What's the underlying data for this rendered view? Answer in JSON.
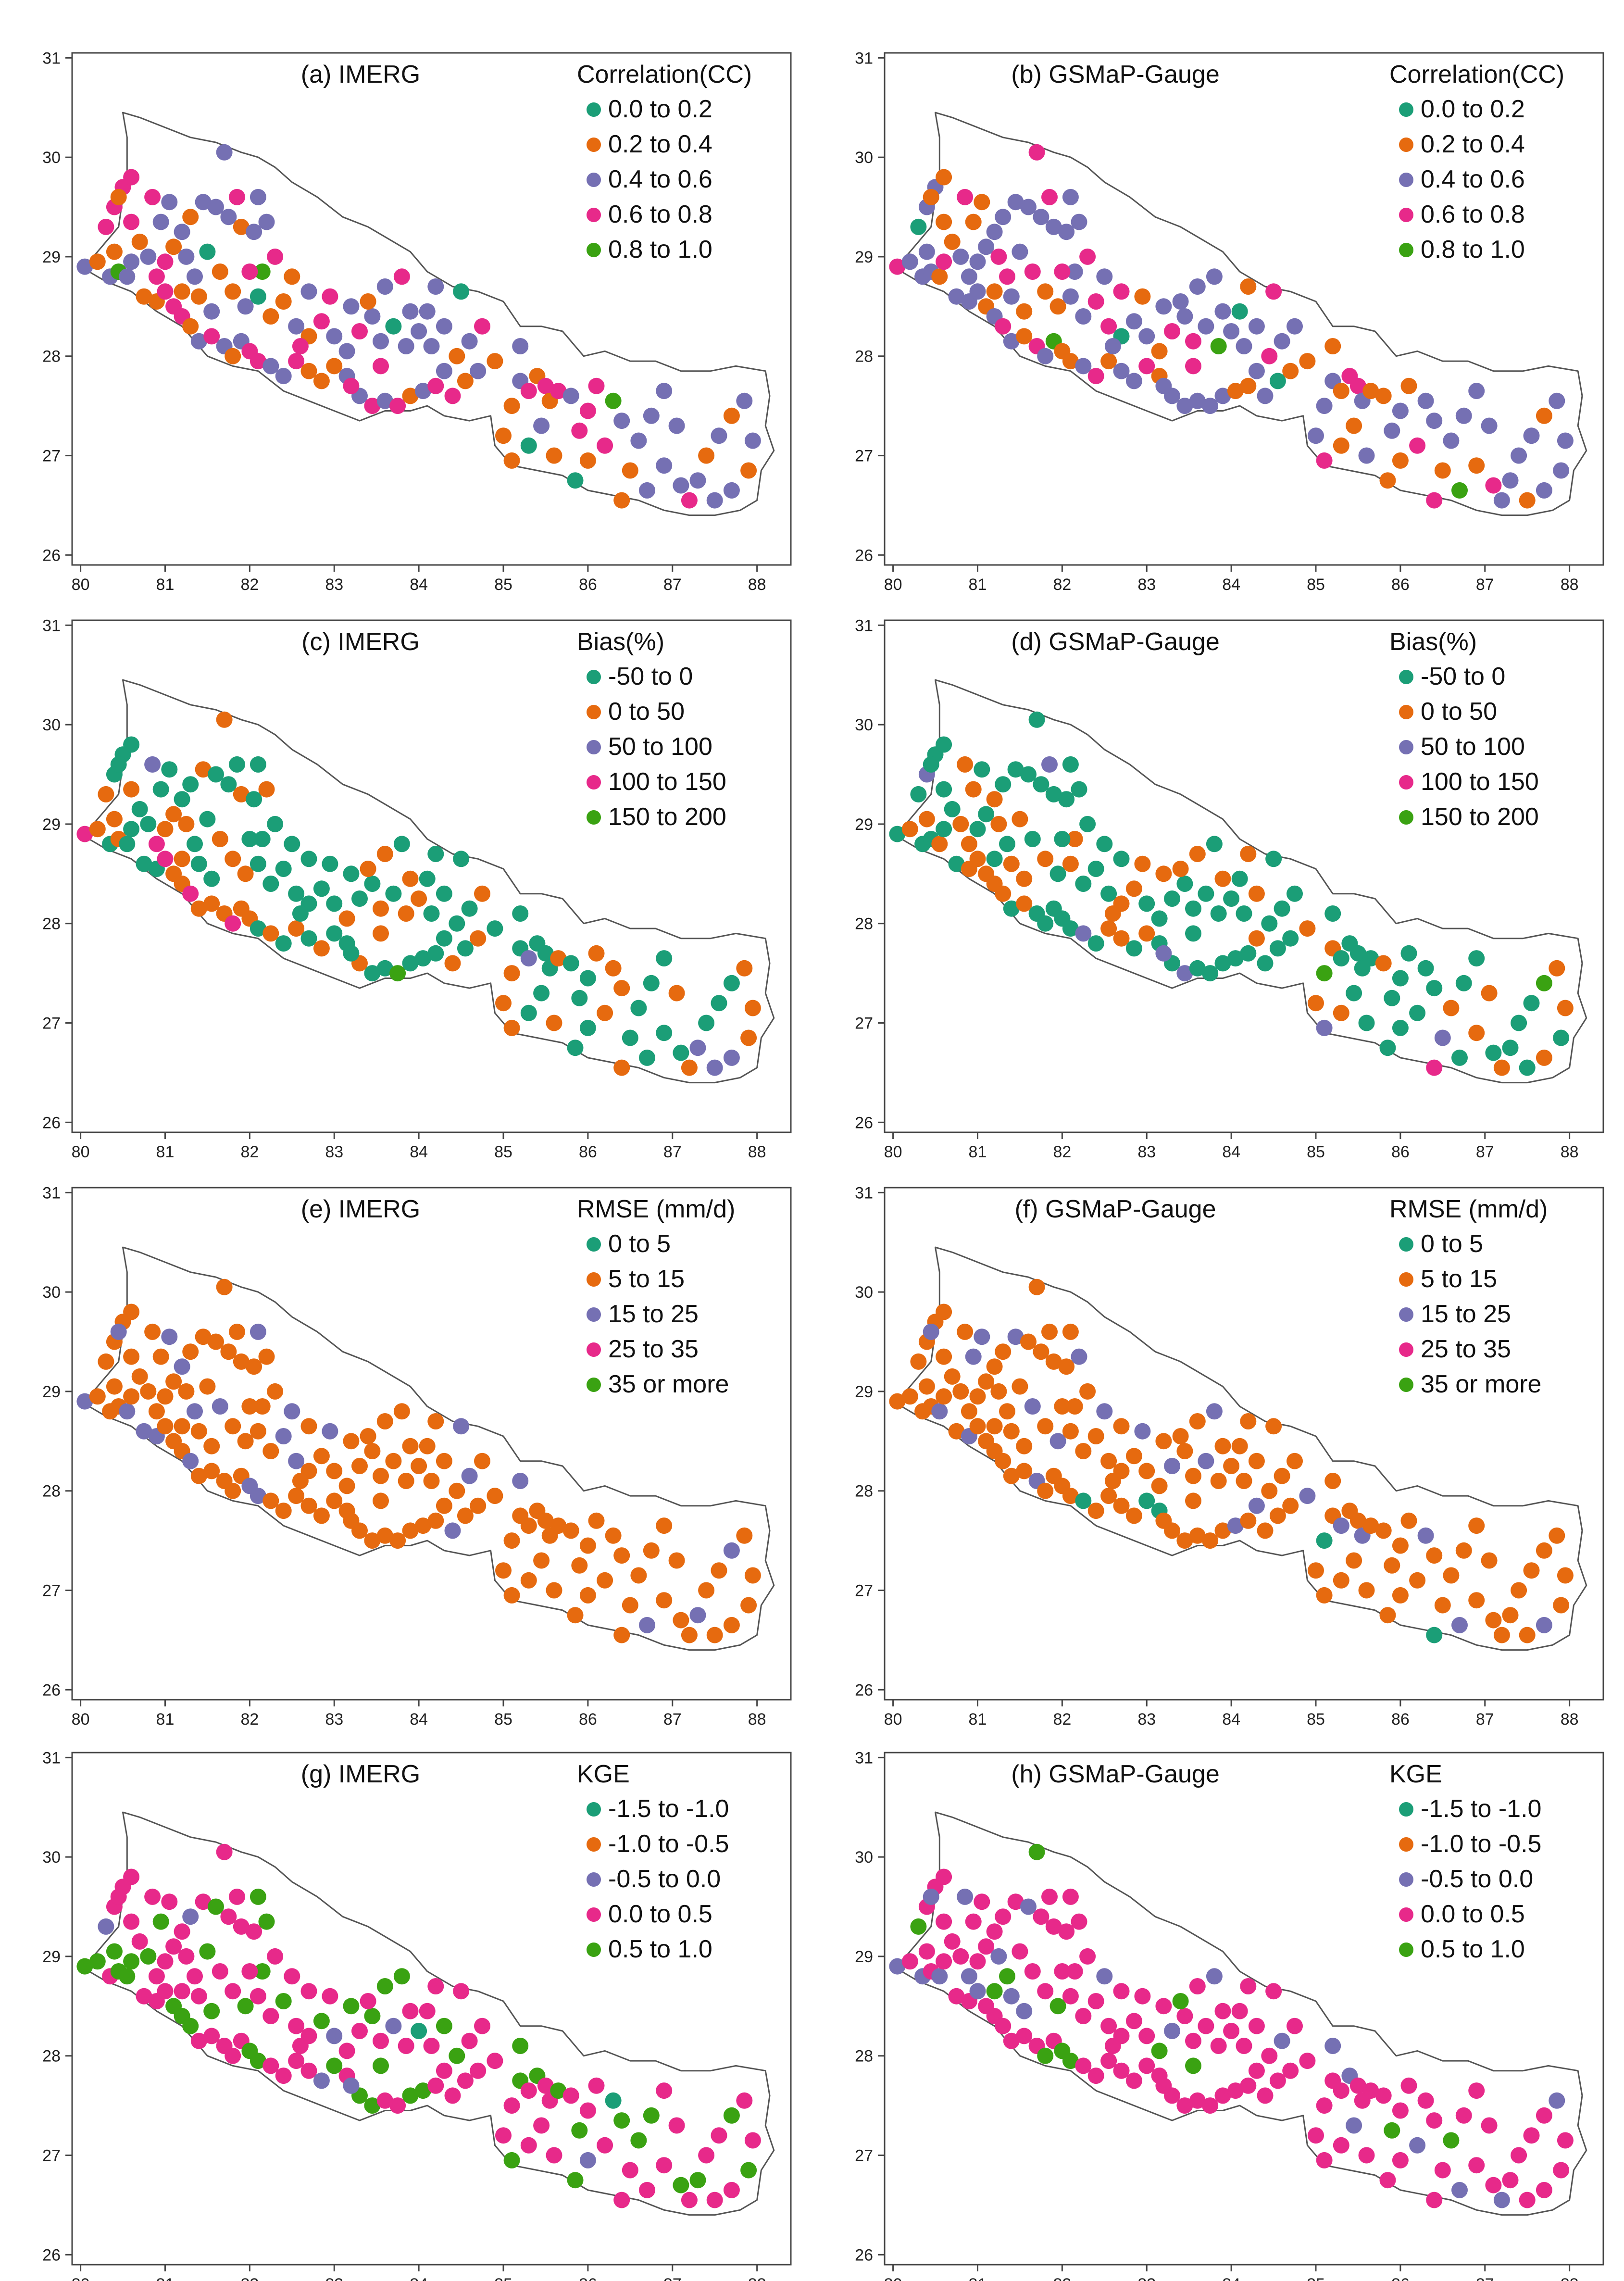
{
  "x_ticks": [
    "80",
    "81",
    "82",
    "83",
    "84",
    "85",
    "86",
    "87",
    "88"
  ],
  "y_ticks": [
    "31",
    "30",
    "29",
    "28",
    "27",
    "26"
  ],
  "x_range": [
    79.9,
    88.4
  ],
  "y_range": [
    25.9,
    31.05
  ],
  "colors": {
    "teal": "#1b9e77",
    "orange": "#e66a0f",
    "purple": "#7570b3",
    "pink": "#e7298a",
    "green": "#3aa212"
  },
  "panels": [
    {
      "id": "a",
      "title": "(a) IMERG",
      "legend_title": "Correlation(CC)",
      "legend": [
        {
          "label": "0.0 to 0.2",
          "color": "#1b9e77"
        },
        {
          "label": "0.2 to 0.4",
          "color": "#e66a0f"
        },
        {
          "label": "0.4 to 0.6",
          "color": "#7570b3"
        },
        {
          "label": "0.6 to 0.8",
          "color": "#e7298a"
        },
        {
          "label": "0.8 to 1.0",
          "color": "#3aa212"
        }
      ],
      "weights": [
        0.05,
        0.3,
        0.35,
        0.28,
        0.02
      ]
    },
    {
      "id": "b",
      "title": "(b) GSMaP-Gauge",
      "legend_title": "Correlation(CC)",
      "legend": [
        {
          "label": "0.0 to 0.2",
          "color": "#1b9e77"
        },
        {
          "label": "0.2 to 0.4",
          "color": "#e66a0f"
        },
        {
          "label": "0.4 to 0.6",
          "color": "#7570b3"
        },
        {
          "label": "0.6 to 0.8",
          "color": "#e7298a"
        },
        {
          "label": "0.8 to 1.0",
          "color": "#3aa212"
        }
      ],
      "weights": [
        0.04,
        0.25,
        0.5,
        0.19,
        0.02
      ]
    },
    {
      "id": "c",
      "title": "(c) IMERG",
      "legend_title": "Bias(%)",
      "legend": [
        {
          "label": "-50 to 0",
          "color": "#1b9e77"
        },
        {
          "label": "0 to 50",
          "color": "#e66a0f"
        },
        {
          "label": "50 to 100",
          "color": "#7570b3"
        },
        {
          "label": "100 to 150",
          "color": "#e7298a"
        },
        {
          "label": "150 to 200",
          "color": "#3aa212"
        }
      ],
      "weights": [
        0.55,
        0.38,
        0.04,
        0.02,
        0.01
      ]
    },
    {
      "id": "d",
      "title": "(d) GSMaP-Gauge",
      "legend_title": "Bias(%)",
      "legend": [
        {
          "label": "-50 to 0",
          "color": "#1b9e77"
        },
        {
          "label": "0 to 50",
          "color": "#e66a0f"
        },
        {
          "label": "50 to 100",
          "color": "#7570b3"
        },
        {
          "label": "100 to 150",
          "color": "#e7298a"
        },
        {
          "label": "150 to 200",
          "color": "#3aa212"
        }
      ],
      "weights": [
        0.65,
        0.28,
        0.05,
        0.01,
        0.01
      ]
    },
    {
      "id": "e",
      "title": "(e) IMERG",
      "legend_title": "RMSE (mm/d)",
      "legend": [
        {
          "label": "0 to 5",
          "color": "#1b9e77"
        },
        {
          "label": "5 to 15",
          "color": "#e66a0f"
        },
        {
          "label": "15 to 25",
          "color": "#7570b3"
        },
        {
          "label": "25 to 35",
          "color": "#e7298a"
        },
        {
          "label": "35 or more",
          "color": "#3aa212"
        }
      ],
      "weights": [
        0.0,
        0.85,
        0.15,
        0.0,
        0.0
      ]
    },
    {
      "id": "f",
      "title": "(f) GSMaP-Gauge",
      "legend_title": "RMSE (mm/d)",
      "legend": [
        {
          "label": "0 to 5",
          "color": "#1b9e77"
        },
        {
          "label": "5 to 15",
          "color": "#e66a0f"
        },
        {
          "label": "15 to 25",
          "color": "#7570b3"
        },
        {
          "label": "25 to 35",
          "color": "#e7298a"
        },
        {
          "label": "35 or more",
          "color": "#3aa212"
        }
      ],
      "weights": [
        0.02,
        0.78,
        0.2,
        0.0,
        0.0
      ]
    },
    {
      "id": "g",
      "title": "(g) IMERG",
      "legend_title": "KGE",
      "legend": [
        {
          "label": "-1.5 to -1.0",
          "color": "#1b9e77"
        },
        {
          "label": "-1.0 to -0.5",
          "color": "#e66a0f"
        },
        {
          "label": "-0.5 to 0.0",
          "color": "#7570b3"
        },
        {
          "label": "0.0 to 0.5",
          "color": "#e7298a"
        },
        {
          "label": "0.5 to 1.0",
          "color": "#3aa212"
        }
      ],
      "weights": [
        0.01,
        0.0,
        0.05,
        0.6,
        0.34
      ]
    },
    {
      "id": "h",
      "title": "(h) GSMaP-Gauge",
      "legend_title": "KGE",
      "legend": [
        {
          "label": "-1.5 to -1.0",
          "color": "#1b9e77"
        },
        {
          "label": "-1.0 to -0.5",
          "color": "#e66a0f"
        },
        {
          "label": "-0.5 to 0.0",
          "color": "#7570b3"
        },
        {
          "label": "0.0 to 0.5",
          "color": "#e7298a"
        },
        {
          "label": "0.5 to 1.0",
          "color": "#3aa212"
        }
      ],
      "weights": [
        0.0,
        0.0,
        0.12,
        0.8,
        0.08
      ]
    }
  ],
  "nepal_outline": [
    [
      80.05,
      28.9
    ],
    [
      80.25,
      29.1
    ],
    [
      80.45,
      29.3
    ],
    [
      80.5,
      29.6
    ],
    [
      80.55,
      29.85
    ],
    [
      80.55,
      30.2
    ],
    [
      80.5,
      30.45
    ],
    [
      80.7,
      30.4
    ],
    [
      81.0,
      30.3
    ],
    [
      81.3,
      30.2
    ],
    [
      81.6,
      30.15
    ],
    [
      81.9,
      30.05
    ],
    [
      82.1,
      30.0
    ],
    [
      82.3,
      29.9
    ],
    [
      82.5,
      29.75
    ],
    [
      82.8,
      29.6
    ],
    [
      83.1,
      29.4
    ],
    [
      83.4,
      29.3
    ],
    [
      83.6,
      29.2
    ],
    [
      83.9,
      29.05
    ],
    [
      84.1,
      28.85
    ],
    [
      84.4,
      28.7
    ],
    [
      84.7,
      28.65
    ],
    [
      85.0,
      28.55
    ],
    [
      85.2,
      28.3
    ],
    [
      85.45,
      28.3
    ],
    [
      85.7,
      28.25
    ],
    [
      85.95,
      28.0
    ],
    [
      86.2,
      28.05
    ],
    [
      86.5,
      27.95
    ],
    [
      86.8,
      27.95
    ],
    [
      87.1,
      27.85
    ],
    [
      87.45,
      27.85
    ],
    [
      87.75,
      27.9
    ],
    [
      88.1,
      27.85
    ],
    [
      88.15,
      27.6
    ],
    [
      88.1,
      27.3
    ],
    [
      88.2,
      27.05
    ],
    [
      88.05,
      26.85
    ],
    [
      88.0,
      26.55
    ],
    [
      87.8,
      26.45
    ],
    [
      87.5,
      26.4
    ],
    [
      87.2,
      26.4
    ],
    [
      86.9,
      26.45
    ],
    [
      86.6,
      26.55
    ],
    [
      86.3,
      26.6
    ],
    [
      86.0,
      26.65
    ],
    [
      85.7,
      26.8
    ],
    [
      85.4,
      26.85
    ],
    [
      85.1,
      26.9
    ],
    [
      84.9,
      27.1
    ],
    [
      84.85,
      27.4
    ],
    [
      84.6,
      27.35
    ],
    [
      84.3,
      27.4
    ],
    [
      84.1,
      27.5
    ],
    [
      83.9,
      27.45
    ],
    [
      83.6,
      27.45
    ],
    [
      83.3,
      27.35
    ],
    [
      83.0,
      27.45
    ],
    [
      82.7,
      27.55
    ],
    [
      82.4,
      27.65
    ],
    [
      82.1,
      27.85
    ],
    [
      81.8,
      27.9
    ],
    [
      81.5,
      28.0
    ],
    [
      81.2,
      28.3
    ],
    [
      80.9,
      28.45
    ],
    [
      80.6,
      28.65
    ],
    [
      80.3,
      28.75
    ],
    [
      80.1,
      28.85
    ],
    [
      80.05,
      28.9
    ]
  ],
  "stations": [
    [
      80.05,
      28.9
    ],
    [
      80.2,
      28.95
    ],
    [
      80.35,
      28.8
    ],
    [
      80.45,
      28.85
    ],
    [
      80.55,
      28.8
    ],
    [
      80.6,
      28.95
    ],
    [
      80.4,
      29.05
    ],
    [
      80.3,
      29.3
    ],
    [
      80.4,
      29.5
    ],
    [
      80.5,
      29.7
    ],
    [
      80.6,
      29.8
    ],
    [
      80.45,
      29.6
    ],
    [
      80.6,
      29.35
    ],
    [
      80.7,
      29.15
    ],
    [
      80.8,
      29.0
    ],
    [
      80.75,
      28.6
    ],
    [
      80.9,
      28.55
    ],
    [
      81.0,
      28.65
    ],
    [
      81.1,
      28.5
    ],
    [
      81.2,
      28.4
    ],
    [
      81.3,
      28.3
    ],
    [
      81.4,
      28.15
    ],
    [
      81.55,
      28.2
    ],
    [
      81.7,
      28.1
    ],
    [
      81.8,
      28.0
    ],
    [
      81.9,
      28.15
    ],
    [
      82.0,
      28.05
    ],
    [
      82.1,
      27.95
    ],
    [
      82.25,
      27.9
    ],
    [
      82.4,
      27.8
    ],
    [
      82.55,
      27.95
    ],
    [
      82.7,
      27.85
    ],
    [
      82.85,
      27.75
    ],
    [
      83.0,
      27.9
    ],
    [
      83.15,
      27.8
    ],
    [
      83.3,
      27.6
    ],
    [
      83.45,
      27.5
    ],
    [
      83.6,
      27.55
    ],
    [
      83.75,
      27.5
    ],
    [
      83.9,
      27.6
    ],
    [
      84.05,
      27.65
    ],
    [
      84.2,
      27.7
    ],
    [
      84.4,
      27.6
    ],
    [
      84.55,
      27.75
    ],
    [
      84.7,
      27.85
    ],
    [
      80.9,
      28.8
    ],
    [
      81.0,
      28.95
    ],
    [
      81.1,
      29.1
    ],
    [
      81.2,
      29.25
    ],
    [
      81.3,
      29.4
    ],
    [
      81.45,
      29.55
    ],
    [
      81.6,
      29.5
    ],
    [
      81.75,
      29.4
    ],
    [
      81.9,
      29.3
    ],
    [
      82.05,
      29.25
    ],
    [
      82.2,
      29.35
    ],
    [
      81.7,
      30.05
    ],
    [
      81.85,
      29.6
    ],
    [
      82.1,
      29.6
    ],
    [
      81.5,
      29.05
    ],
    [
      81.65,
      28.85
    ],
    [
      81.8,
      28.65
    ],
    [
      81.95,
      28.5
    ],
    [
      82.1,
      28.6
    ],
    [
      82.25,
      28.4
    ],
    [
      82.4,
      28.55
    ],
    [
      82.55,
      28.3
    ],
    [
      82.7,
      28.2
    ],
    [
      82.85,
      28.35
    ],
    [
      83.0,
      28.2
    ],
    [
      83.15,
      28.05
    ],
    [
      83.3,
      28.25
    ],
    [
      83.45,
      28.4
    ],
    [
      83.55,
      28.15
    ],
    [
      83.7,
      28.3
    ],
    [
      83.85,
      28.1
    ],
    [
      84.0,
      28.25
    ],
    [
      84.15,
      28.1
    ],
    [
      84.3,
      28.3
    ],
    [
      84.45,
      28.0
    ],
    [
      84.6,
      28.15
    ],
    [
      84.75,
      28.3
    ],
    [
      83.4,
      28.55
    ],
    [
      83.6,
      28.7
    ],
    [
      83.8,
      28.8
    ],
    [
      84.2,
      28.7
    ],
    [
      84.5,
      28.65
    ],
    [
      83.9,
      28.45
    ],
    [
      84.1,
      28.45
    ],
    [
      83.2,
      28.5
    ],
    [
      82.95,
      28.6
    ],
    [
      82.7,
      28.65
    ],
    [
      82.5,
      28.8
    ],
    [
      82.3,
      29.0
    ],
    [
      82.15,
      28.85
    ],
    [
      81.35,
      28.8
    ],
    [
      81.2,
      28.65
    ],
    [
      80.95,
      29.35
    ],
    [
      81.05,
      29.55
    ],
    [
      80.85,
      29.6
    ],
    [
      81.25,
      29.0
    ],
    [
      81.55,
      28.45
    ],
    [
      81.4,
      28.6
    ],
    [
      82.0,
      28.85
    ],
    [
      85.0,
      27.2
    ],
    [
      85.1,
      27.5
    ],
    [
      85.2,
      27.75
    ],
    [
      85.3,
      27.65
    ],
    [
      85.4,
      27.8
    ],
    [
      85.5,
      27.7
    ],
    [
      85.55,
      27.55
    ],
    [
      85.65,
      27.65
    ],
    [
      85.8,
      27.6
    ],
    [
      85.45,
      27.3
    ],
    [
      85.3,
      27.1
    ],
    [
      85.6,
      27.0
    ],
    [
      85.9,
      27.25
    ],
    [
      86.0,
      27.45
    ],
    [
      86.1,
      27.7
    ],
    [
      86.3,
      27.55
    ],
    [
      86.4,
      27.35
    ],
    [
      86.2,
      27.1
    ],
    [
      86.0,
      26.95
    ],
    [
      85.85,
      26.75
    ],
    [
      86.5,
      26.85
    ],
    [
      86.6,
      27.15
    ],
    [
      86.75,
      27.4
    ],
    [
      86.9,
      27.65
    ],
    [
      87.05,
      27.3
    ],
    [
      86.9,
      26.9
    ],
    [
      87.1,
      26.7
    ],
    [
      87.2,
      26.55
    ],
    [
      87.3,
      26.75
    ],
    [
      87.4,
      27.0
    ],
    [
      87.55,
      27.2
    ],
    [
      87.7,
      27.4
    ],
    [
      87.85,
      27.55
    ],
    [
      87.95,
      27.15
    ],
    [
      87.9,
      26.85
    ],
    [
      87.7,
      26.65
    ],
    [
      87.5,
      26.55
    ],
    [
      86.7,
      26.65
    ],
    [
      86.4,
      26.55
    ],
    [
      85.1,
      26.95
    ],
    [
      84.9,
      27.95
    ],
    [
      85.2,
      28.1
    ],
    [
      83.2,
      27.7
    ],
    [
      83.55,
      27.9
    ],
    [
      84.3,
      27.85
    ],
    [
      82.6,
      28.1
    ]
  ]
}
